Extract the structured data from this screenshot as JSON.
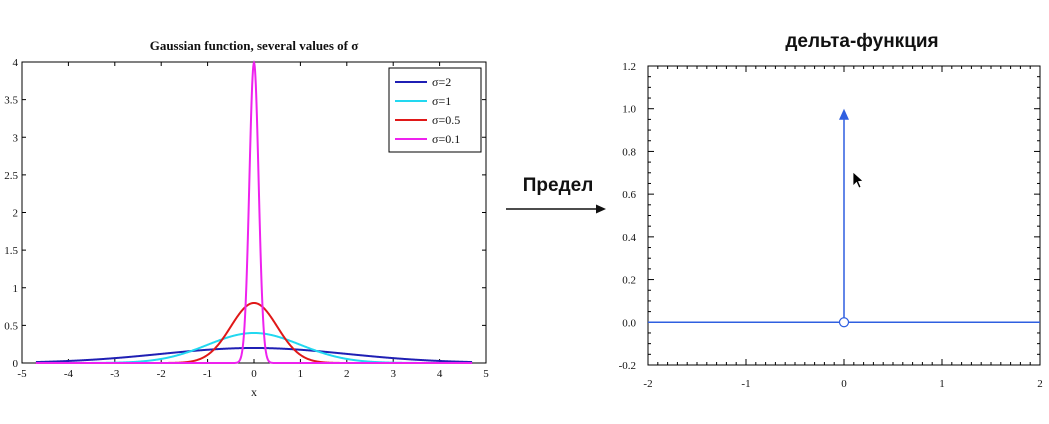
{
  "slide": {
    "arrow_label": "Предел"
  },
  "chart_data": [
    {
      "type": "line",
      "title": "Gaussian function, several values of σ",
      "xlabel": "x",
      "ylabel": "",
      "xlim": [
        -5,
        5
      ],
      "ylim": [
        0,
        4
      ],
      "x_ticks": [
        "-5",
        "-4",
        "-3",
        "-2",
        "-1",
        "0",
        "1",
        "2",
        "3",
        "4",
        "5"
      ],
      "y_ticks": [
        "0",
        "0.5",
        "1",
        "1.5",
        "2",
        "2.5",
        "3",
        "3.5",
        "4"
      ],
      "x_domain": [
        -4.7,
        4.7
      ],
      "legend_position": "top-right",
      "series": [
        {
          "name": "σ=2",
          "sigma": 2,
          "color": "#1f1fb4"
        },
        {
          "name": "σ=1",
          "sigma": 1,
          "color": "#22d8f0"
        },
        {
          "name": "σ=0.5",
          "sigma": 0.5,
          "color": "#e01818"
        },
        {
          "name": "σ=0.1",
          "sigma": 0.1,
          "color": "#ee22ee"
        }
      ]
    },
    {
      "type": "line",
      "title": "дельта-функция",
      "xlabel": "",
      "ylabel": "",
      "xlim": [
        -2,
        2
      ],
      "ylim": [
        -0.2,
        1.2
      ],
      "x_ticks": [
        "-2",
        "-1",
        "0",
        "1",
        "2"
      ],
      "y_ticks": [
        "-0.2",
        "0.0",
        "0.2",
        "0.4",
        "0.6",
        "0.8",
        "1.0",
        "1.2"
      ],
      "grid": false,
      "series": [
        {
          "color": "#2f5fe0",
          "x": [
            -2,
            2
          ],
          "y": [
            0,
            0
          ]
        }
      ],
      "impulse": {
        "x": 0,
        "y": 1,
        "color": "#2f5fe0",
        "open_marker_at": [
          0,
          0
        ]
      }
    }
  ]
}
